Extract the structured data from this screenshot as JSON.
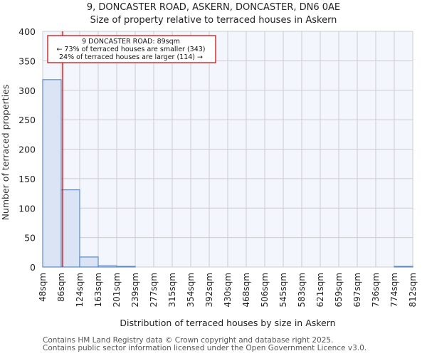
{
  "header": {
    "title": "9, DONCASTER ROAD, ASKERN, DONCASTER, DN6 0AE",
    "subtitle": "Size of property relative to terraced houses in Askern"
  },
  "annotation": {
    "line1": "9 DONCASTER ROAD: 89sqm",
    "line2": "← 73% of terraced houses are smaller (343)",
    "line3": "24% of terraced houses are larger (114) →",
    "marker_value": 89,
    "color": "#cc0000"
  },
  "footer": {
    "line1": "Contains HM Land Registry data © Crown copyright and database right 2025.",
    "line2": "Contains public sector information licensed under the Open Government Licence v3.0."
  },
  "colors": {
    "bar_fill": "#dae4f4",
    "bar_stroke": "#5b8ac8",
    "plot_bg": "#f3f6fd",
    "grid": "#cccccc",
    "marker": "#cc0000"
  },
  "chart_data": {
    "type": "bar",
    "title": "9, DONCASTER ROAD, ASKERN, DONCASTER, DN6 0AE",
    "subtitle": "Size of property relative to terraced houses in Askern",
    "xlabel": "Distribution of terraced houses by size in Askern",
    "ylabel": "Number of terraced properties",
    "categories": [
      "48sqm",
      "86sqm",
      "124sqm",
      "163sqm",
      "201sqm",
      "239sqm",
      "277sqm",
      "315sqm",
      "354sqm",
      "392sqm",
      "430sqm",
      "468sqm",
      "506sqm",
      "545sqm",
      "583sqm",
      "621sqm",
      "659sqm",
      "697sqm",
      "736sqm",
      "774sqm",
      "812sqm"
    ],
    "values": [
      318,
      131,
      17,
      2,
      1,
      0,
      0,
      0,
      0,
      0,
      0,
      0,
      0,
      0,
      0,
      0,
      0,
      0,
      0,
      1
    ],
    "yticks": [
      0,
      50,
      100,
      150,
      200,
      250,
      300,
      350,
      400
    ],
    "ylim": [
      0,
      400
    ],
    "grid": true,
    "marker_line": {
      "value": 89,
      "label": "9 DONCASTER ROAD: 89sqm"
    },
    "legend": null
  }
}
